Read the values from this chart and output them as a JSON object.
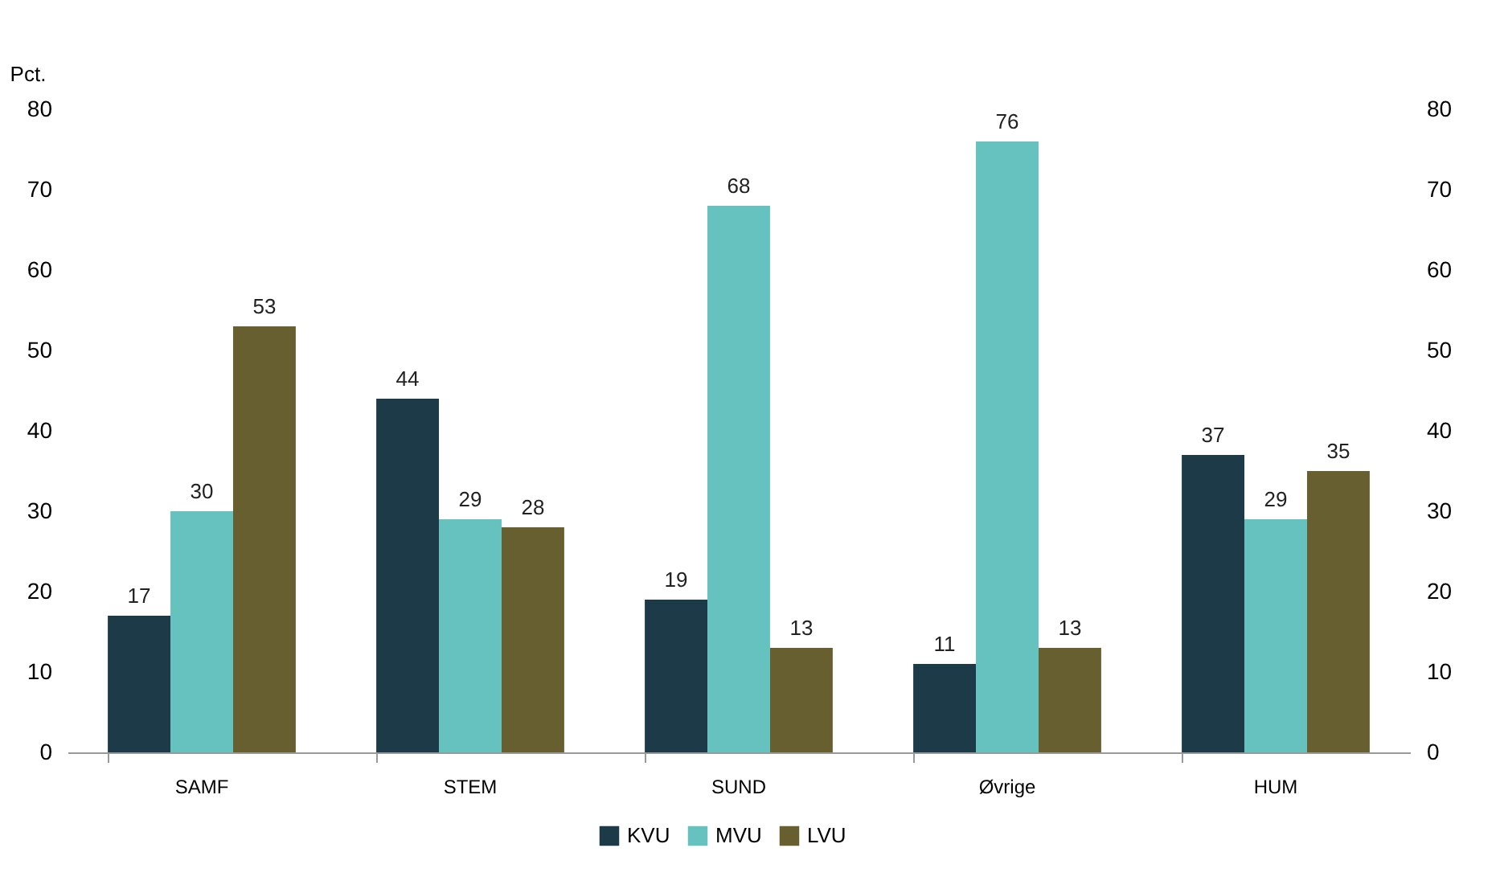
{
  "chart_data": {
    "type": "bar",
    "ylabel": "Pct.",
    "categories": [
      "SAMF",
      "STEM",
      "SUND",
      "Øvrige",
      "HUM"
    ],
    "series": [
      {
        "name": "KVU",
        "color": "#1c3a47",
        "values": [
          17,
          44,
          19,
          11,
          37
        ]
      },
      {
        "name": "MVU",
        "color": "#66c2bf",
        "values": [
          30,
          29,
          68,
          76,
          29
        ]
      },
      {
        "name": "LVU",
        "color": "#675f30",
        "values": [
          53,
          28,
          13,
          13,
          35
        ]
      }
    ],
    "ylim": [
      0,
      80
    ],
    "yticks": [
      0,
      10,
      20,
      30,
      40,
      50,
      60,
      70,
      80
    ],
    "y2lim": [
      0,
      80
    ],
    "y2ticks": [
      0,
      10,
      20,
      30,
      40,
      50,
      60,
      70,
      80
    ],
    "data_labels": true,
    "grid": false,
    "legend": "bottom"
  }
}
